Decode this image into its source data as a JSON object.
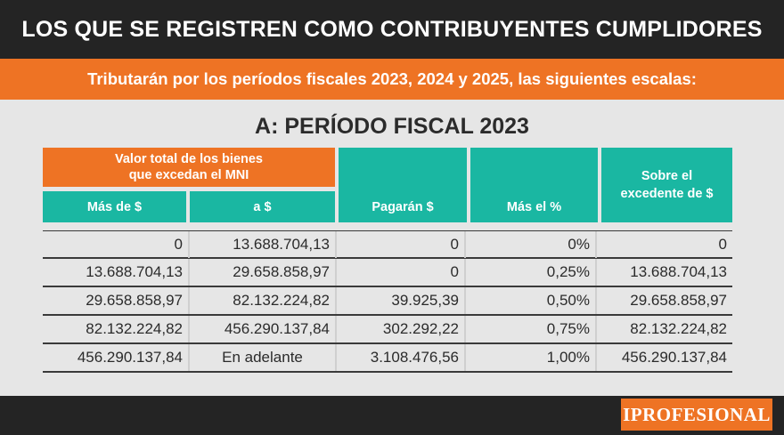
{
  "header": {
    "title": "LOS QUE SE REGISTREN COMO CONTRIBUYENTES CUMPLIDORES",
    "subtitle": "Tributarán por los períodos fiscales 2023, 2024 y 2025, las siguientes escalas:"
  },
  "section_title": "A: PERÍODO FISCAL 2023",
  "table": {
    "group_header_line1": "Valor total de los bienes",
    "group_header_line2": "que excedan el MNI",
    "columns": {
      "mas_de": "Más de $",
      "a": "a $",
      "pagaran": "Pagarán $",
      "mas_el_pct": "Más el %",
      "sobre_line1": "Sobre el",
      "sobre_line2": "excedente de $"
    },
    "rows": [
      [
        "0",
        "13.688.704,13",
        "0",
        "0%",
        "0"
      ],
      [
        "13.688.704,13",
        "29.658.858,97",
        "0",
        "0,25%",
        "13.688.704,13"
      ],
      [
        "29.658.858,97",
        "82.132.224,82",
        "39.925,39",
        "0,50%",
        "29.658.858,97"
      ],
      [
        "82.132.224,82",
        "456.290.137,84",
        "302.292,22",
        "0,75%",
        "82.132.224,82"
      ],
      [
        "456.290.137,84",
        "En adelante",
        "3.108.476,56",
        "1,00%",
        "456.290.137,84"
      ]
    ]
  },
  "branding": {
    "logo_text": "IPROFESIONAL"
  },
  "colors": {
    "dark_band": "#242424",
    "orange": "#ee7324",
    "teal": "#1ab7a2",
    "background": "#e6e6e6"
  }
}
